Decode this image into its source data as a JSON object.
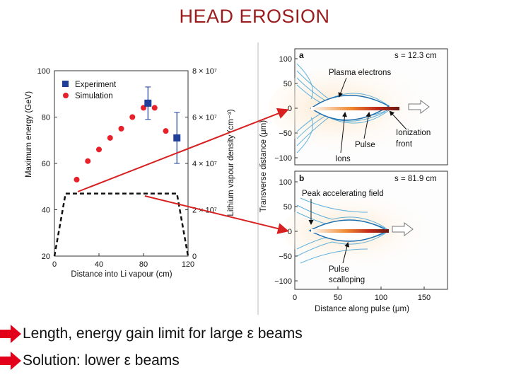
{
  "slide": {
    "title": "HEAD EROSION"
  },
  "left_figure": {
    "y_left_label": "Maximum energy (GeV)",
    "y_right_label": "Lithium vapour density (cm⁻³)",
    "x_label": "Distance into Li vapour (cm)",
    "x_ticks": [
      "0",
      "40",
      "80",
      "120"
    ],
    "y_left_ticks": [
      "20",
      "40",
      "60",
      "80",
      "100"
    ],
    "y_right_ticks": [
      "0",
      "2 × 10⁷",
      "4 × 10⁷",
      "6 × 10⁷",
      "8 × 10⁷"
    ],
    "legend": {
      "experiment": "Experiment",
      "simulation": "Simulation"
    },
    "colors": {
      "experiment": "#1f3f99",
      "simulation": "#e8202a",
      "arrow": "#d82020"
    }
  },
  "chart_data": {
    "type": "scatter",
    "title": "",
    "xlabel": "Distance into Li vapour (cm)",
    "ylabel": "Maximum energy (GeV)",
    "xlim": [
      0,
      120
    ],
    "ylim": [
      20,
      100
    ],
    "series": [
      {
        "name": "Simulation",
        "x": [
          20,
          30,
          40,
          50,
          60,
          70,
          80,
          90,
          100
        ],
        "y": [
          53,
          61,
          66,
          71,
          75,
          80,
          84,
          84,
          74
        ]
      },
      {
        "name": "Experiment",
        "x": [
          84,
          110
        ],
        "y": [
          86,
          71
        ],
        "yerr": [
          7,
          11
        ]
      },
      {
        "name": "Lithium vapour density profile",
        "x": [
          0,
          10,
          110,
          120
        ],
        "y": [
          20,
          47,
          47,
          20
        ]
      }
    ]
  },
  "right_figure": {
    "panel_a": {
      "letter": "a",
      "s_label": "s = 12.3 cm",
      "ann_plasma": "Plasma electrons",
      "ann_ionization_1": "Ionization",
      "ann_ionization_2": "front",
      "ann_pulse": "Pulse",
      "ann_ions": "Ions",
      "y_ticks": [
        "100",
        "50",
        "0",
        "−50",
        "−100"
      ]
    },
    "panel_b": {
      "letter": "b",
      "s_label": "s = 81.9 cm",
      "ann_peak": "Peak accelerating field",
      "ann_pulse_1": "Pulse",
      "ann_pulse_2": "scalloping",
      "y_ticks": [
        "100",
        "50",
        "0",
        "−50",
        "−100"
      ]
    },
    "y_label": "Transverse distance (μm)",
    "x_label": "Distance along pulse (μm)",
    "x_ticks": [
      "0",
      "50",
      "100",
      "150"
    ]
  },
  "bullets": [
    {
      "text": "Length, energy gain limit for large ε  beams"
    },
    {
      "text": "Solution: lower ε  beams"
    }
  ]
}
